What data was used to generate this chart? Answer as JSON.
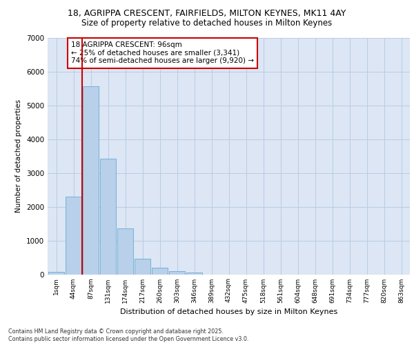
{
  "title_line1": "18, AGRIPPA CRESCENT, FAIRFIELDS, MILTON KEYNES, MK11 4AY",
  "title_line2": "Size of property relative to detached houses in Milton Keynes",
  "xlabel": "Distribution of detached houses by size in Milton Keynes",
  "ylabel": "Number of detached properties",
  "categories": [
    "1sqm",
    "44sqm",
    "87sqm",
    "131sqm",
    "174sqm",
    "217sqm",
    "260sqm",
    "303sqm",
    "346sqm",
    "389sqm",
    "432sqm",
    "475sqm",
    "518sqm",
    "561sqm",
    "604sqm",
    "648sqm",
    "691sqm",
    "734sqm",
    "777sqm",
    "820sqm",
    "863sqm"
  ],
  "values": [
    80,
    2300,
    5560,
    3420,
    1360,
    460,
    185,
    100,
    60,
    0,
    0,
    0,
    0,
    0,
    0,
    0,
    0,
    0,
    0,
    0,
    0
  ],
  "bar_color": "#b8d0ea",
  "bar_edge_color": "#6aaad4",
  "vline_color": "#cc0000",
  "annotation_title": "18 AGRIPPA CRESCENT: 96sqm",
  "annotation_line2": "← 25% of detached houses are smaller (3,341)",
  "annotation_line3": "74% of semi-detached houses are larger (9,920) →",
  "annotation_box_color": "#cc0000",
  "ylim": [
    0,
    7000
  ],
  "yticks": [
    0,
    1000,
    2000,
    3000,
    4000,
    5000,
    6000,
    7000
  ],
  "grid_color": "#b8cce4",
  "background_color": "#dce6f4",
  "footer_line1": "Contains HM Land Registry data © Crown copyright and database right 2025.",
  "footer_line2": "Contains public sector information licensed under the Open Government Licence v3.0."
}
